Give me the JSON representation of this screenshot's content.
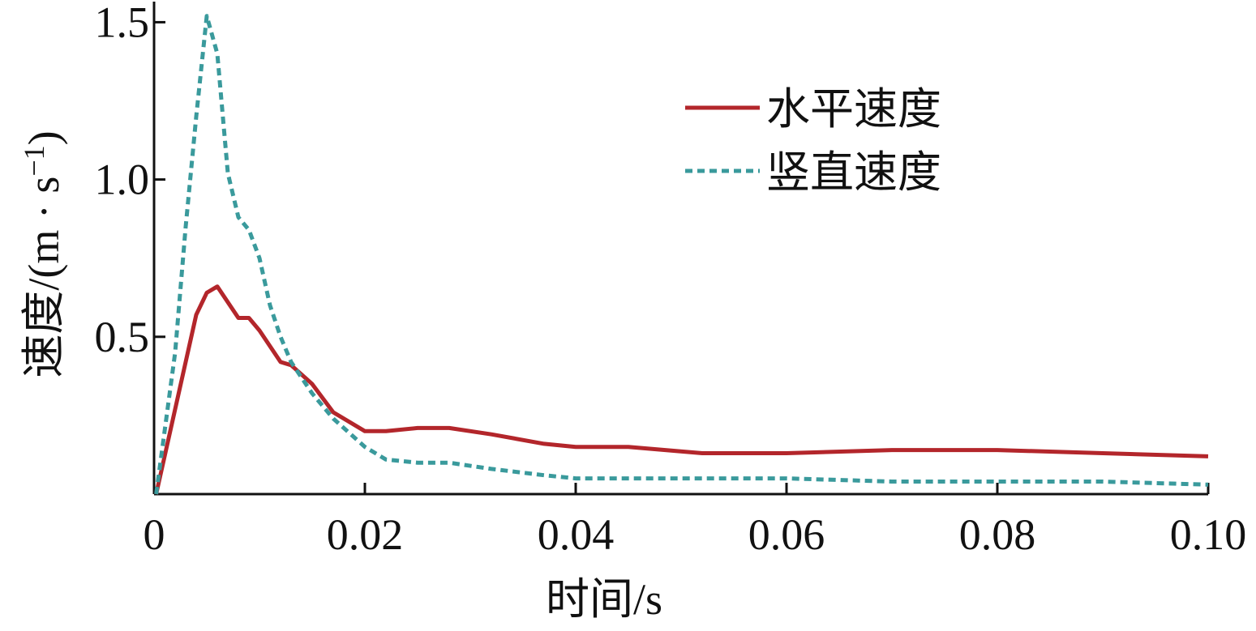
{
  "chart_data": {
    "type": "line",
    "xlabel": "时间/s",
    "ylabel": {
      "prefix": "速度/(m · s",
      "superscript": "−1",
      "suffix": ")"
    },
    "xlim": [
      0,
      0.1
    ],
    "ylim": [
      0,
      1.55
    ],
    "x_ticks": [
      {
        "value": 0,
        "label": "0"
      },
      {
        "value": 0.02,
        "label": "0.02"
      },
      {
        "value": 0.04,
        "label": "0.04"
      },
      {
        "value": 0.06,
        "label": "0.06"
      },
      {
        "value": 0.08,
        "label": "0.08"
      },
      {
        "value": 0.1,
        "label": "0.10"
      }
    ],
    "y_ticks": [
      {
        "value": 0.5,
        "label": "0.5"
      },
      {
        "value": 1.0,
        "label": "1.0"
      },
      {
        "value": 1.5,
        "label": "1.5"
      }
    ],
    "grid": false,
    "legend": "upper-right",
    "series": [
      {
        "name": "水平速度",
        "color": "#b3262b",
        "style": "solid",
        "points": [
          [
            0.0002,
            0.0
          ],
          [
            0.004,
            0.57
          ],
          [
            0.005,
            0.64
          ],
          [
            0.006,
            0.66
          ],
          [
            0.008,
            0.56
          ],
          [
            0.009,
            0.56
          ],
          [
            0.01,
            0.52
          ],
          [
            0.012,
            0.42
          ],
          [
            0.013,
            0.41
          ],
          [
            0.015,
            0.35
          ],
          [
            0.017,
            0.26
          ],
          [
            0.02,
            0.2
          ],
          [
            0.022,
            0.2
          ],
          [
            0.025,
            0.21
          ],
          [
            0.028,
            0.21
          ],
          [
            0.032,
            0.19
          ],
          [
            0.037,
            0.16
          ],
          [
            0.04,
            0.15
          ],
          [
            0.045,
            0.15
          ],
          [
            0.052,
            0.13
          ],
          [
            0.06,
            0.13
          ],
          [
            0.07,
            0.14
          ],
          [
            0.08,
            0.14
          ],
          [
            0.09,
            0.13
          ],
          [
            0.1,
            0.12
          ]
        ]
      },
      {
        "name": "竖直速度",
        "color": "#3a9a9c",
        "style": "dotted",
        "points": [
          [
            0.0002,
            0.0
          ],
          [
            0.002,
            0.45
          ],
          [
            0.003,
            0.85
          ],
          [
            0.004,
            1.2
          ],
          [
            0.005,
            1.52
          ],
          [
            0.006,
            1.4
          ],
          [
            0.007,
            1.02
          ],
          [
            0.008,
            0.88
          ],
          [
            0.009,
            0.84
          ],
          [
            0.01,
            0.75
          ],
          [
            0.011,
            0.6
          ],
          [
            0.012,
            0.5
          ],
          [
            0.013,
            0.42
          ],
          [
            0.015,
            0.32
          ],
          [
            0.017,
            0.24
          ],
          [
            0.02,
            0.15
          ],
          [
            0.022,
            0.11
          ],
          [
            0.025,
            0.1
          ],
          [
            0.028,
            0.1
          ],
          [
            0.032,
            0.08
          ],
          [
            0.037,
            0.06
          ],
          [
            0.04,
            0.05
          ],
          [
            0.05,
            0.05
          ],
          [
            0.06,
            0.05
          ],
          [
            0.07,
            0.04
          ],
          [
            0.08,
            0.04
          ],
          [
            0.09,
            0.04
          ],
          [
            0.1,
            0.03
          ]
        ]
      }
    ]
  }
}
